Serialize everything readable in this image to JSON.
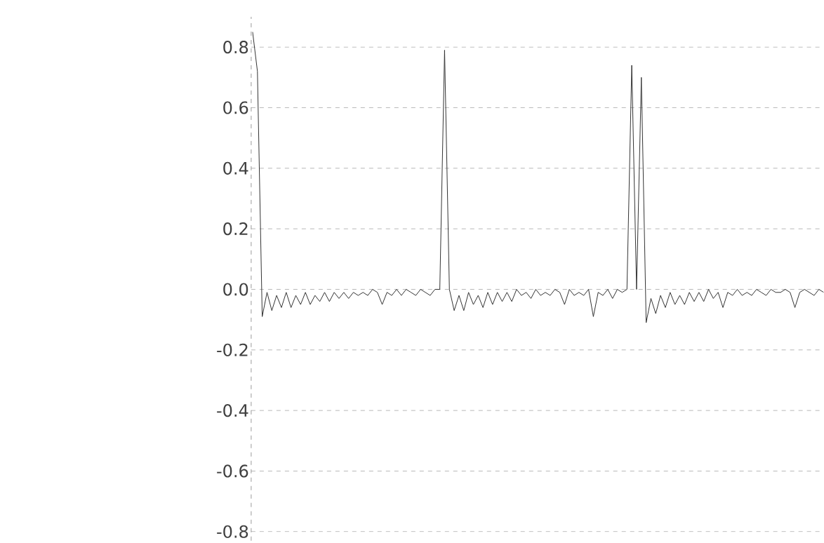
{
  "chart_data": {
    "type": "line",
    "categories": [
      null,
      null,
      null,
      null,
      null,
      null,
      null,
      null,
      null,
      null,
      null,
      null,
      null,
      null,
      null,
      null,
      null,
      null,
      null,
      null,
      null,
      null,
      null,
      null,
      null,
      null,
      null,
      null,
      null,
      null,
      null,
      null,
      null,
      null,
      null,
      null,
      null,
      null,
      null,
      null,
      null,
      null,
      null,
      null,
      null,
      null,
      null,
      null,
      null,
      null,
      null,
      null,
      null,
      null,
      null,
      null,
      null,
      null,
      null,
      null,
      null,
      null,
      null,
      null,
      null,
      null,
      null,
      null,
      null,
      null,
      null,
      null,
      null,
      null,
      null,
      null,
      null,
      null,
      null,
      null,
      null,
      null,
      null,
      null,
      null,
      null,
      null,
      null,
      null,
      null,
      null,
      null,
      null,
      null,
      null,
      null,
      null,
      null,
      null,
      null,
      null,
      null,
      null,
      null,
      null,
      null,
      null,
      null,
      null,
      null,
      null,
      null,
      null,
      null,
      null,
      null,
      null,
      null,
      null,
      null
    ],
    "series": [
      {
        "color": "#333333",
        "values": [
          0.85,
          0.72,
          -0.09,
          -0.01,
          -0.07,
          -0.02,
          -0.06,
          -0.01,
          -0.06,
          -0.02,
          -0.05,
          -0.01,
          -0.05,
          -0.02,
          -0.04,
          -0.01,
          -0.04,
          -0.01,
          -0.03,
          -0.01,
          -0.03,
          -0.01,
          -0.02,
          -0.01,
          -0.02,
          0.0,
          -0.01,
          -0.05,
          -0.01,
          -0.02,
          0.0,
          -0.02,
          0.0,
          -0.01,
          -0.02,
          0.0,
          -0.01,
          -0.02,
          0.0,
          0.0,
          0.79,
          0.0,
          -0.07,
          -0.02,
          -0.07,
          -0.01,
          -0.05,
          -0.02,
          -0.06,
          -0.01,
          -0.05,
          -0.01,
          -0.04,
          -0.01,
          -0.04,
          0.0,
          -0.02,
          -0.01,
          -0.03,
          0.0,
          -0.02,
          -0.01,
          -0.02,
          0.0,
          -0.01,
          -0.05,
          0.0,
          -0.02,
          -0.01,
          -0.02,
          0.0,
          -0.09,
          -0.01,
          -0.02,
          0.0,
          -0.03,
          0.0,
          -0.01,
          0.0,
          0.74,
          0.0,
          0.7,
          -0.11,
          -0.03,
          -0.08,
          -0.02,
          -0.06,
          -0.01,
          -0.05,
          -0.02,
          -0.05,
          -0.01,
          -0.04,
          -0.01,
          -0.04,
          0.0,
          -0.03,
          -0.01,
          -0.06,
          -0.01,
          -0.02,
          0.0,
          -0.02,
          -0.01,
          -0.02,
          0.0,
          -0.01,
          -0.02,
          0.0,
          -0.01,
          -0.01,
          0.0,
          -0.01,
          -0.06,
          -0.01,
          0.0,
          -0.01,
          -0.02,
          0.0,
          -0.01
        ]
      }
    ],
    "ylim": [
      -0.83,
      0.9
    ],
    "yticks": [
      -0.8,
      -0.6,
      -0.4,
      -0.2,
      {
        "value": 0,
        "label": "0.0"
      },
      0.2,
      0.4,
      0.6,
      0.8
    ],
    "grid": "y",
    "line_style": "solid"
  }
}
